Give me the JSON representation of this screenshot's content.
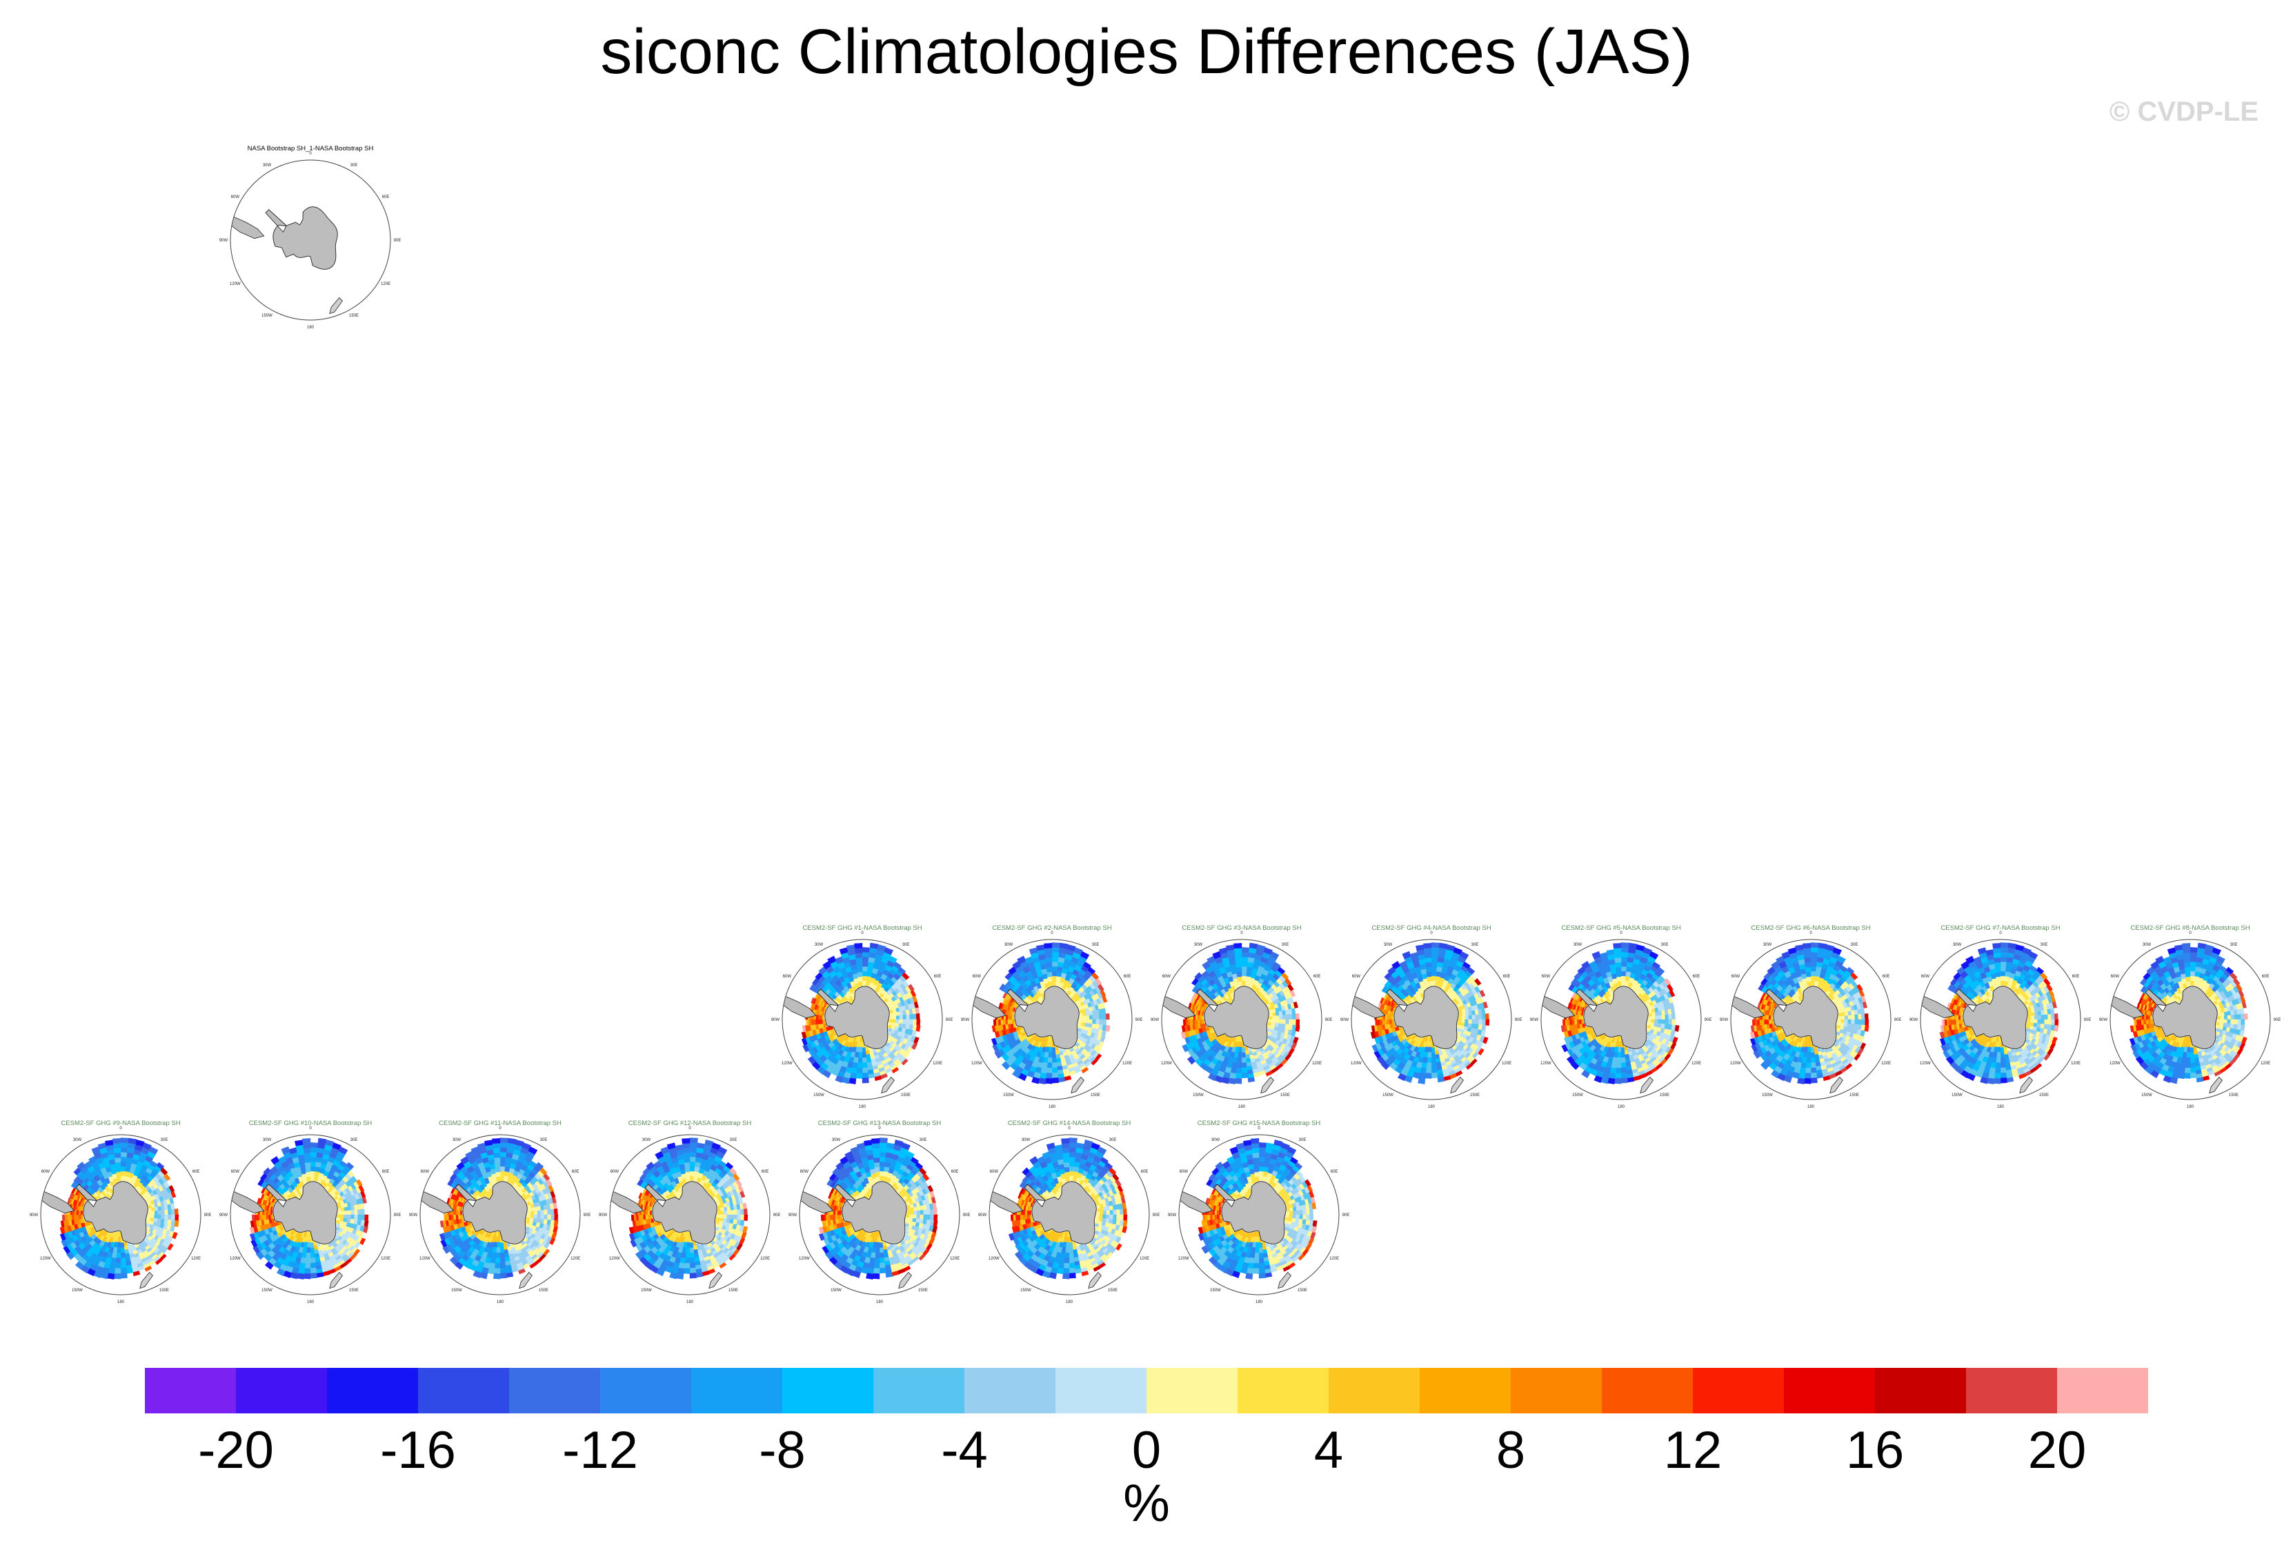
{
  "header": {
    "title": "siconc Climatologies Differences (JAS)",
    "watermark": "© CVDP-LE"
  },
  "chart_data": {
    "type": "heatmap",
    "title": "siconc Climatologies Differences (JAS)",
    "projection": "south-polar-stereographic",
    "map_longitude_labels": [
      "0",
      "30E",
      "60E",
      "90E",
      "120E",
      "150E",
      "180",
      "150W",
      "120W",
      "90W",
      "60W",
      "30W"
    ],
    "panels": [
      {
        "title": "NASA Bootstrap SH_1-NASA Bootstrap SH",
        "kind": "observation",
        "field": "no differences shown"
      },
      {
        "title": "CESM2-SF GHG #1-NASA Bootstrap SH",
        "kind": "model"
      },
      {
        "title": "CESM2-SF GHG #2-NASA Bootstrap SH",
        "kind": "model"
      },
      {
        "title": "CESM2-SF GHG #3-NASA Bootstrap SH",
        "kind": "model"
      },
      {
        "title": "CESM2-SF GHG #4-NASA Bootstrap SH",
        "kind": "model"
      },
      {
        "title": "CESM2-SF GHG #5-NASA Bootstrap SH",
        "kind": "model"
      },
      {
        "title": "CESM2-SF GHG #6-NASA Bootstrap SH",
        "kind": "model"
      },
      {
        "title": "CESM2-SF GHG #7-NASA Bootstrap SH",
        "kind": "model"
      },
      {
        "title": "CESM2-SF GHG #8-NASA Bootstrap SH",
        "kind": "model"
      },
      {
        "title": "CESM2-SF GHG #9-NASA Bootstrap SH",
        "kind": "model"
      },
      {
        "title": "CESM2-SF GHG #10-NASA Bootstrap SH",
        "kind": "model"
      },
      {
        "title": "CESM2-SF GHG #11-NASA Bootstrap SH",
        "kind": "model"
      },
      {
        "title": "CESM2-SF GHG #12-NASA Bootstrap SH",
        "kind": "model"
      },
      {
        "title": "CESM2-SF GHG #13-NASA Bootstrap SH",
        "kind": "model"
      },
      {
        "title": "CESM2-SF GHG #14-NASA Bootstrap SH",
        "kind": "model"
      },
      {
        "title": "CESM2-SF GHG #15-NASA Bootstrap SH",
        "kind": "model"
      }
    ],
    "colorbar": {
      "unit": "%",
      "levels": [
        -22,
        -20,
        -18,
        -16,
        -14,
        -12,
        -10,
        -8,
        -6,
        -4,
        -2,
        0,
        2,
        4,
        6,
        8,
        10,
        12,
        14,
        16,
        18,
        20,
        22
      ],
      "tick_labels": [
        "-20",
        "-16",
        "-12",
        "-8",
        "-4",
        "0",
        "4",
        "8",
        "12",
        "16",
        "20"
      ],
      "tick_values": [
        -20,
        -16,
        -12,
        -8,
        -4,
        0,
        4,
        8,
        12,
        16,
        20
      ],
      "colors": [
        "#7b22f2",
        "#4413f5",
        "#1414f5",
        "#2f4ae6",
        "#3a6ee6",
        "#2b86f0",
        "#16a0f5",
        "#00bfff",
        "#57c5f0",
        "#98cff0",
        "#bee3f6",
        "#fff79b",
        "#fee243",
        "#fcc51f",
        "#fca800",
        "#fc8600",
        "#fc5500",
        "#fc1e00",
        "#e80000",
        "#c80000",
        "#dc4040",
        "#feadad"
      ]
    }
  }
}
